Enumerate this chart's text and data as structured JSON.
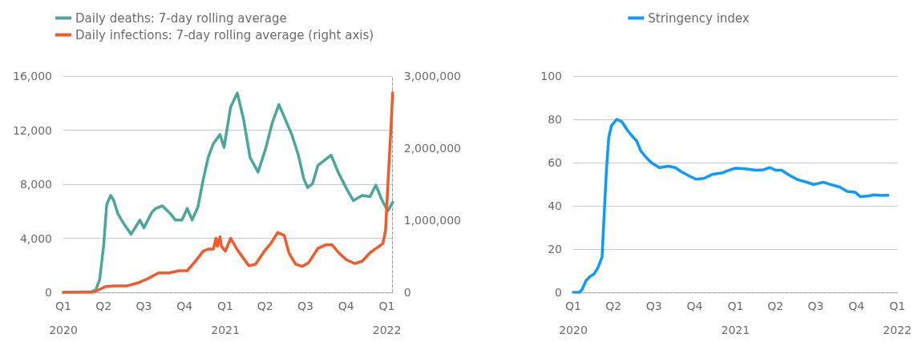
{
  "chart_data": [
    {
      "type": "line",
      "legend": "top left",
      "grid": "y",
      "marker": "none",
      "line_style": "solid",
      "xlim": [
        "2020-01-01",
        "2022-01-14"
      ],
      "xticks": [
        {
          "value": "2020-01-01",
          "label": "Q1"
        },
        {
          "value": "2020-04-01",
          "label": "Q2"
        },
        {
          "value": "2020-07-01",
          "label": "Q3"
        },
        {
          "value": "2020-10-01",
          "label": "Q4"
        },
        {
          "value": "2021-01-01",
          "label": "Q1"
        },
        {
          "value": "2021-04-01",
          "label": "Q2"
        },
        {
          "value": "2021-07-01",
          "label": "Q3"
        },
        {
          "value": "2021-10-01",
          "label": "Q4"
        },
        {
          "value": "2022-01-01",
          "label": "Q1"
        }
      ],
      "x2lim": [
        "2020-01-01",
        "2022-01-14"
      ],
      "x2ticks": [
        {
          "value": "2020-01-01",
          "label": "2020"
        },
        {
          "value": "2021-01-01",
          "label": "2021"
        },
        {
          "value": "2022-01-01",
          "label": "2022"
        }
      ],
      "ylim": [
        0,
        16000
      ],
      "yticks": [
        0,
        {
          "value": 4000,
          "label": "4,000"
        },
        {
          "value": 8000,
          "label": "8,000"
        },
        {
          "value": 12000,
          "label": "12,000"
        },
        {
          "value": 16000,
          "label": "16,000"
        }
      ],
      "y2lim": [
        0,
        3000000
      ],
      "y2ticks": [
        0,
        {
          "value": 1000000,
          "label": "1,000,000"
        },
        {
          "value": 2000000,
          "label": "2,000,000"
        },
        {
          "value": 3000000,
          "label": "3,000,000"
        }
      ],
      "series": [
        {
          "name": "Daily deaths: 7-day rolling average",
          "color": "#4aa89a",
          "x": [
            "2020-01-01",
            "2020-03-05",
            "2020-03-14",
            "2020-03-23",
            "2020-04-01",
            "2020-04-08",
            "2020-04-17",
            "2020-04-24",
            "2020-05-03",
            "2020-05-15",
            "2020-06-02",
            "2020-06-11",
            "2020-06-22",
            "2020-07-01",
            "2020-07-19",
            "2020-07-28",
            "2020-08-12",
            "2020-09-01",
            "2020-09-10",
            "2020-09-25",
            "2020-10-07",
            "2020-10-18",
            "2020-10-31",
            "2020-11-12",
            "2020-11-23",
            "2020-12-05",
            "2020-12-20",
            "2020-12-29",
            "2021-01-13",
            "2021-01-28",
            "2021-02-11",
            "2021-02-26",
            "2021-03-16",
            "2021-04-02",
            "2021-04-17",
            "2021-05-02",
            "2021-05-16",
            "2021-05-31",
            "2021-06-15",
            "2021-06-27",
            "2021-07-06",
            "2021-07-17",
            "2021-07-29",
            "2021-08-28",
            "2021-09-14",
            "2021-10-02",
            "2021-10-17",
            "2021-11-06",
            "2021-11-24",
            "2021-12-07",
            "2021-12-20",
            "2022-01-03",
            "2022-01-14"
          ],
          "values": [
            0,
            50,
            170,
            940,
            3430,
            6500,
            7170,
            6790,
            5830,
            5160,
            4300,
            4780,
            5350,
            4780,
            5930,
            6210,
            6400,
            5740,
            5350,
            5350,
            6210,
            5350,
            6310,
            8330,
            9960,
            11010,
            11680,
            10720,
            13700,
            14750,
            12830,
            9960,
            8900,
            10630,
            12550,
            13890,
            12830,
            11680,
            10150,
            8420,
            7750,
            8040,
            9380,
            10150,
            8810,
            7650,
            6790,
            7170,
            7080,
            7940,
            6890,
            6020,
            6660
          ]
        },
        {
          "name": "Daily infections: 7-day rolling average (right axis)",
          "color": "#f4592a",
          "axis": "y2",
          "x": [
            "2020-01-01",
            "2020-03-08",
            "2020-03-26",
            "2020-04-06",
            "2020-04-24",
            "2020-05-24",
            "2020-06-17",
            "2020-07-10",
            "2020-08-03",
            "2020-08-27",
            "2020-09-19",
            "2020-10-07",
            "2020-10-25",
            "2020-11-12",
            "2020-11-23",
            "2020-12-05",
            "2020-12-11",
            "2020-12-14",
            "2020-12-20",
            "2020-12-23",
            "2021-01-01",
            "2021-01-13",
            "2021-01-28",
            "2021-02-23",
            "2021-03-10",
            "2021-03-30",
            "2021-04-14",
            "2021-04-29",
            "2021-05-14",
            "2021-05-25",
            "2021-06-09",
            "2021-06-24",
            "2021-07-08",
            "2021-07-29",
            "2021-08-16",
            "2021-08-30",
            "2021-09-14",
            "2021-10-02",
            "2021-10-20",
            "2021-11-06",
            "2021-11-24",
            "2021-12-12",
            "2021-12-23",
            "2021-12-29",
            "2022-01-03",
            "2022-01-10",
            "2022-01-14"
          ],
          "values": [
            0,
            0,
            50000,
            80000,
            90000,
            90000,
            130000,
            190000,
            270000,
            270000,
            300000,
            300000,
            430000,
            570000,
            600000,
            600000,
            750000,
            640000,
            770000,
            640000,
            570000,
            750000,
            590000,
            370000,
            390000,
            570000,
            680000,
            830000,
            790000,
            540000,
            390000,
            360000,
            410000,
            610000,
            660000,
            660000,
            550000,
            450000,
            400000,
            430000,
            550000,
            630000,
            680000,
            860000,
            1470000,
            2260000,
            2770000
          ]
        }
      ]
    },
    {
      "type": "line",
      "legend": "top",
      "grid": "y",
      "marker": "none",
      "line_style": "solid",
      "xlim": [
        "2020-01-01",
        "2022-01-01"
      ],
      "xticks": [
        {
          "value": "2020-01-01",
          "label": "Q1"
        },
        {
          "value": "2020-04-01",
          "label": "Q2"
        },
        {
          "value": "2020-07-01",
          "label": "Q3"
        },
        {
          "value": "2020-10-01",
          "label": "Q4"
        },
        {
          "value": "2021-01-01",
          "label": "Q1"
        },
        {
          "value": "2021-04-01",
          "label": "Q2"
        },
        {
          "value": "2021-07-01",
          "label": "Q3"
        },
        {
          "value": "2021-10-01",
          "label": "Q4"
        },
        {
          "value": "2022-01-01",
          "label": "Q1"
        }
      ],
      "x2lim": [
        "2020-01-01",
        "2022-01-01"
      ],
      "x2ticks": [
        {
          "value": "2020-01-01",
          "label": "2020"
        },
        {
          "value": "2021-01-01",
          "label": "2021"
        },
        {
          "value": "2022-01-01",
          "label": "2022"
        }
      ],
      "ylim": [
        0,
        100
      ],
      "yticks": [
        0,
        20,
        40,
        60,
        80,
        100
      ],
      "series": [
        {
          "name": "Stringency index",
          "color": "#0a9bff",
          "x": [
            "2020-01-01",
            "2020-01-15",
            "2020-01-21",
            "2020-01-30",
            "2020-02-08",
            "2020-02-17",
            "2020-02-26",
            "2020-03-06",
            "2020-03-10",
            "2020-03-16",
            "2020-03-21",
            "2020-03-27",
            "2020-04-08",
            "2020-04-20",
            "2020-05-02",
            "2020-05-14",
            "2020-05-23",
            "2020-06-01",
            "2020-06-13",
            "2020-06-25",
            "2020-07-13",
            "2020-08-03",
            "2020-08-18",
            "2020-08-30",
            "2020-09-17",
            "2020-10-04",
            "2020-10-22",
            "2020-11-09",
            "2020-12-03",
            "2020-12-18",
            "2021-01-01",
            "2021-01-23",
            "2021-02-16",
            "2021-03-05",
            "2021-03-20",
            "2021-04-01",
            "2021-04-15",
            "2021-05-03",
            "2021-05-21",
            "2021-06-08",
            "2021-06-26",
            "2021-07-19",
            "2021-08-06",
            "2021-08-24",
            "2021-09-10",
            "2021-09-28",
            "2021-10-09",
            "2021-10-27",
            "2021-11-08",
            "2021-11-26",
            "2021-12-11"
          ],
          "values": [
            0,
            0,
            1.3,
            5.5,
            7.3,
            8.5,
            11.5,
            16.3,
            33,
            57,
            71.5,
            77,
            80,
            78.8,
            75,
            72,
            70,
            65.5,
            62.5,
            60,
            57.7,
            58.3,
            57.7,
            56,
            54,
            52.3,
            52.7,
            54.5,
            55.3,
            56.5,
            57.4,
            57.1,
            56.5,
            56.7,
            57.7,
            56.5,
            56.5,
            54.1,
            52.1,
            51.1,
            49.9,
            50.9,
            49.7,
            48.7,
            46.7,
            46.3,
            44.3,
            44.5,
            45.1,
            44.8,
            44.9
          ]
        }
      ]
    }
  ]
}
